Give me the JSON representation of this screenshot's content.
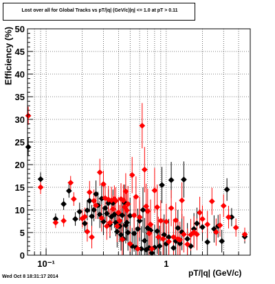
{
  "chart_data": {
    "type": "scatter",
    "title": "Lost over all for Global Tracks vs pT/|q| (GeV/c)|η| <= 1.0 at pT > 0.11",
    "xlabel": "pT/|q| (GeV/c)",
    "ylabel": "Efficiency (%)",
    "xscale": "log",
    "xlim": [
      0.07,
      5.0
    ],
    "ylim": [
      0,
      50
    ],
    "grid": true,
    "xticks": [
      {
        "value": 0.1,
        "label": "10⁻¹"
      },
      {
        "value": 1,
        "label": "1"
      }
    ],
    "yticks": [
      0,
      5,
      10,
      15,
      20,
      25,
      30,
      35,
      40,
      45,
      50
    ],
    "series": [
      {
        "color": "#000000",
        "points": [
          [
            0.071,
            23.9,
            2.0
          ],
          [
            0.09,
            16.8,
            1.5
          ],
          [
            0.12,
            8.0,
            1.2
          ],
          [
            0.14,
            11.3,
            1.3
          ],
          [
            0.155,
            14.2,
            1.5
          ],
          [
            0.175,
            8.0,
            1.5
          ],
          [
            0.19,
            9.6,
            2.0
          ],
          [
            0.21,
            7.0,
            2.0
          ],
          [
            0.22,
            9.9,
            2.2
          ],
          [
            0.23,
            12.0,
            2.5
          ],
          [
            0.24,
            8.6,
            2.5
          ],
          [
            0.25,
            10.0,
            2.5
          ],
          [
            0.26,
            13.5,
            3.0
          ],
          [
            0.27,
            11.0,
            3.0
          ],
          [
            0.28,
            9.0,
            3.0
          ],
          [
            0.29,
            12.5,
            3.0
          ],
          [
            0.3,
            7.4,
            3.0
          ],
          [
            0.31,
            10.4,
            3.0
          ],
          [
            0.32,
            9.2,
            3.0
          ],
          [
            0.33,
            11.5,
            3.0
          ],
          [
            0.34,
            6.8,
            3.0
          ],
          [
            0.35,
            8.5,
            3.0
          ],
          [
            0.36,
            11.5,
            3.0
          ],
          [
            0.37,
            9.0,
            3.0
          ],
          [
            0.38,
            7.2,
            3.0
          ],
          [
            0.39,
            5.2,
            3.5
          ],
          [
            0.4,
            9.2,
            3.5
          ],
          [
            0.41,
            6.4,
            3.5
          ],
          [
            0.42,
            4.5,
            3.5
          ],
          [
            0.43,
            8.8,
            3.5
          ],
          [
            0.44,
            3.6,
            3.5
          ],
          [
            0.45,
            11.6,
            4.0
          ],
          [
            0.46,
            6.6,
            4.0
          ],
          [
            0.47,
            7.2,
            4.0
          ],
          [
            0.48,
            5.0,
            4.0
          ],
          [
            0.5,
            8.7,
            4.0
          ],
          [
            0.52,
            2.0,
            4.0
          ],
          [
            0.54,
            4.8,
            4.0
          ],
          [
            0.56,
            1.7,
            4.5
          ],
          [
            0.58,
            5.8,
            4.5
          ],
          [
            0.6,
            7.6,
            4.5
          ],
          [
            0.62,
            1.4,
            5.0
          ],
          [
            0.64,
            10.0,
            5.0
          ],
          [
            0.66,
            3.2,
            5.0
          ],
          [
            0.68,
            1.2,
            5.0
          ],
          [
            0.7,
            6.0,
            5.0
          ],
          [
            0.72,
            1.6,
            5.5
          ],
          [
            0.74,
            5.5,
            5.5
          ],
          [
            0.76,
            0.5,
            5.5
          ],
          [
            0.8,
            1.7,
            5.0
          ],
          [
            0.84,
            5.3,
            5.0
          ],
          [
            0.88,
            2.0,
            4.5
          ],
          [
            0.92,
            15.5,
            4.0
          ],
          [
            0.96,
            4.5,
            4.5
          ],
          [
            1.0,
            2.5,
            4.0
          ],
          [
            1.05,
            4.0,
            4.0
          ],
          [
            1.1,
            16.6,
            4.0
          ],
          [
            1.15,
            1.6,
            4.0
          ],
          [
            1.2,
            3.1,
            4.0
          ],
          [
            1.25,
            6.0,
            4.0
          ],
          [
            1.3,
            2.6,
            4.0
          ],
          [
            1.35,
            5.1,
            4.0
          ],
          [
            1.4,
            16.7,
            4.0
          ],
          [
            1.5,
            3.6,
            3.5
          ],
          [
            1.6,
            2.0,
            3.5
          ],
          [
            1.7,
            5.8,
            3.5
          ],
          [
            1.8,
            7.0,
            3.5
          ],
          [
            2.0,
            6.2,
            3.0
          ],
          [
            2.2,
            2.9,
            3.0
          ],
          [
            2.5,
            5.8,
            3.0
          ],
          [
            2.7,
            6.4,
            2.5
          ],
          [
            2.9,
            3.1,
            2.5
          ],
          [
            3.2,
            14.5,
            2.5
          ],
          [
            3.5,
            8.4,
            2.0
          ],
          [
            4.5,
            4.1,
            1.5
          ]
        ]
      },
      {
        "color": "#ff0000",
        "points": [
          [
            0.071,
            30.8,
            2.0
          ],
          [
            0.09,
            15.0,
            1.5
          ],
          [
            0.12,
            7.2,
            1.2
          ],
          [
            0.14,
            7.6,
            1.3
          ],
          [
            0.16,
            16.0,
            1.5
          ],
          [
            0.17,
            12.4,
            1.5
          ],
          [
            0.2,
            8.1,
            2.0
          ],
          [
            0.21,
            8.5,
            2.0
          ],
          [
            0.22,
            5.2,
            2.2
          ],
          [
            0.23,
            13.9,
            2.5
          ],
          [
            0.24,
            4.0,
            2.5
          ],
          [
            0.25,
            12.0,
            2.5
          ],
          [
            0.26,
            11.0,
            3.0
          ],
          [
            0.28,
            18.3,
            3.0
          ],
          [
            0.29,
            8.2,
            3.0
          ],
          [
            0.3,
            15.7,
            3.0
          ],
          [
            0.31,
            12.6,
            3.0
          ],
          [
            0.32,
            6.4,
            3.0
          ],
          [
            0.33,
            12.3,
            3.0
          ],
          [
            0.34,
            7.2,
            3.0
          ],
          [
            0.35,
            12.1,
            3.0
          ],
          [
            0.36,
            10.2,
            3.0
          ],
          [
            0.37,
            12.4,
            3.0
          ],
          [
            0.38,
            12.0,
            3.0
          ],
          [
            0.39,
            6.4,
            3.5
          ],
          [
            0.4,
            9.4,
            3.5
          ],
          [
            0.41,
            7.6,
            3.5
          ],
          [
            0.42,
            12.4,
            3.5
          ],
          [
            0.43,
            3.5,
            3.5
          ],
          [
            0.44,
            12.1,
            3.5
          ],
          [
            0.45,
            10.6,
            4.0
          ],
          [
            0.46,
            14.1,
            4.0
          ],
          [
            0.47,
            9.9,
            4.0
          ],
          [
            0.48,
            11.3,
            4.0
          ],
          [
            0.5,
            2.5,
            4.0
          ],
          [
            0.52,
            17.7,
            4.0
          ],
          [
            0.54,
            8.8,
            4.0
          ],
          [
            0.56,
            12.9,
            4.5
          ],
          [
            0.58,
            1.4,
            4.5
          ],
          [
            0.6,
            8.4,
            4.5
          ],
          [
            0.63,
            28.6,
            5.0
          ],
          [
            0.66,
            18.9,
            5.0
          ],
          [
            0.68,
            10.8,
            5.0
          ],
          [
            0.7,
            9.7,
            5.0
          ],
          [
            0.72,
            4.8,
            5.5
          ],
          [
            0.74,
            6.8,
            5.5
          ],
          [
            0.76,
            1.4,
            5.5
          ],
          [
            0.8,
            14.3,
            5.0
          ],
          [
            0.84,
            10.6,
            5.0
          ],
          [
            0.86,
            4.0,
            4.5
          ],
          [
            0.9,
            7.6,
            4.5
          ],
          [
            0.94,
            3.6,
            4.5
          ],
          [
            1.0,
            7.4,
            4.0
          ],
          [
            1.05,
            3.0,
            4.0
          ],
          [
            1.1,
            10.4,
            4.0
          ],
          [
            1.15,
            4.0,
            4.0
          ],
          [
            1.2,
            7.7,
            4.0
          ],
          [
            1.25,
            3.6,
            4.0
          ],
          [
            1.3,
            3.4,
            4.0
          ],
          [
            1.35,
            12.1,
            4.0
          ],
          [
            1.4,
            4.6,
            4.0
          ],
          [
            1.5,
            2.4,
            3.5
          ],
          [
            1.6,
            4.5,
            3.5
          ],
          [
            1.7,
            5.1,
            3.5
          ],
          [
            1.8,
            4.6,
            3.5
          ],
          [
            1.9,
            9.4,
            3.5
          ],
          [
            2.0,
            8.0,
            3.0
          ],
          [
            2.2,
            6.8,
            3.0
          ],
          [
            2.4,
            11.9,
            3.0
          ],
          [
            2.6,
            5.1,
            3.0
          ],
          [
            2.8,
            6.6,
            2.5
          ],
          [
            3.0,
            10.9,
            2.5
          ],
          [
            3.3,
            8.4,
            2.5
          ],
          [
            3.8,
            6.1,
            2.0
          ],
          [
            4.5,
            4.6,
            1.5
          ]
        ]
      }
    ]
  },
  "footer": "Wed Oct  8 18:31:17 2014"
}
